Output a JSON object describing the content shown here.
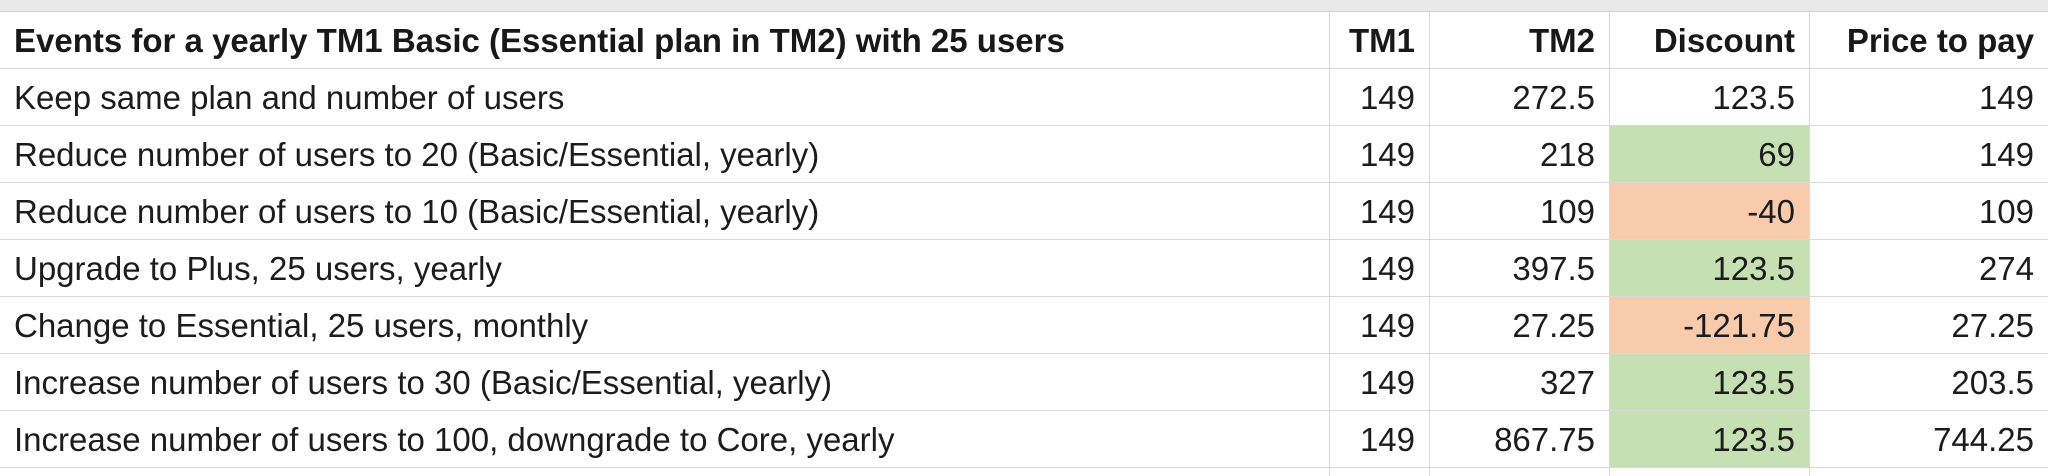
{
  "colors": {
    "positive_fill": "#c6e0b4",
    "negative_fill": "#f8cbad",
    "gridline": "#d9d9d9",
    "top_strip": "#e9e9e9"
  },
  "table": {
    "headers": {
      "events": "Events for a yearly TM1 Basic (Essential plan in TM2) with 25 users",
      "tm1": "TM1",
      "tm2": "TM2",
      "discount": "Discount",
      "price": "Price to pay"
    },
    "rows": [
      {
        "event": "Keep same plan and number of users",
        "tm1": "149",
        "tm2": "272.5",
        "discount": "123.5",
        "discount_fill": "none",
        "price": "149"
      },
      {
        "event": "Reduce number of users to 20 (Basic/Essential, yearly)",
        "tm1": "149",
        "tm2": "218",
        "discount": "69",
        "discount_fill": "positive",
        "price": "149"
      },
      {
        "event": "Reduce number of users to 10 (Basic/Essential, yearly)",
        "tm1": "149",
        "tm2": "109",
        "discount": "-40",
        "discount_fill": "negative",
        "price": "109"
      },
      {
        "event": "Upgrade to Plus, 25 users, yearly",
        "tm1": "149",
        "tm2": "397.5",
        "discount": "123.5",
        "discount_fill": "positive",
        "price": "274"
      },
      {
        "event": "Change to Essential, 25 users, monthly",
        "tm1": "149",
        "tm2": "27.25",
        "discount": "-121.75",
        "discount_fill": "negative",
        "price": "27.25"
      },
      {
        "event": "Increase number of users to 30 (Basic/Essential, yearly)",
        "tm1": "149",
        "tm2": "327",
        "discount": "123.5",
        "discount_fill": "positive",
        "price": "203.5"
      },
      {
        "event": "Increase number of users to 100, downgrade to Core, yearly",
        "tm1": "149",
        "tm2": "867.75",
        "discount": "123.5",
        "discount_fill": "positive",
        "price": "744.25"
      }
    ]
  }
}
